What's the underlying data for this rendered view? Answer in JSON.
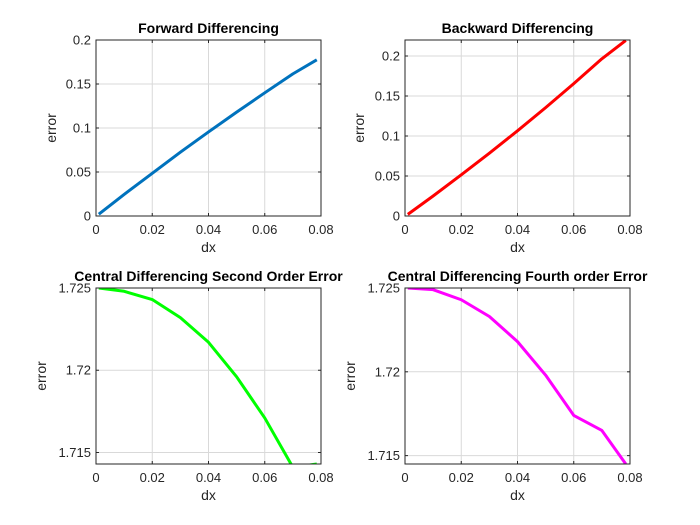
{
  "chart_data": [
    {
      "type": "line",
      "title": "Forward Differencing",
      "xlabel": "dx",
      "ylabel": "error",
      "xlim": [
        0,
        0.08
      ],
      "ylim": [
        0,
        0.2
      ],
      "xticks": [
        "0",
        "0.02",
        "0.04",
        "0.06",
        "0.08"
      ],
      "yticks": [
        "0",
        "0.05",
        "0.1",
        "0.15",
        "0.2"
      ],
      "xtick_values": [
        0,
        0.02,
        0.04,
        0.06,
        0.08
      ],
      "ytick_values": [
        0,
        0.05,
        0.1,
        0.15,
        0.2
      ],
      "grid": true,
      "series": [
        {
          "color": "#0072BD",
          "x": [
            0.001,
            0.01,
            0.02,
            0.03,
            0.04,
            0.05,
            0.06,
            0.07,
            0.0785
          ],
          "y": [
            0.002,
            0.0245,
            0.0485,
            0.0725,
            0.0955,
            0.118,
            0.14,
            0.1615,
            0.1775
          ]
        }
      ]
    },
    {
      "type": "line",
      "title": "Backward Differencing",
      "xlabel": "dx",
      "ylabel": "error",
      "xlim": [
        0,
        0.08
      ],
      "ylim": [
        0,
        0.22
      ],
      "xticks": [
        "0",
        "0.02",
        "0.04",
        "0.06",
        "0.08"
      ],
      "yticks": [
        "0",
        "0.05",
        "0.1",
        "0.15",
        "0.2"
      ],
      "xtick_values": [
        0,
        0.02,
        0.04,
        0.06,
        0.08
      ],
      "ytick_values": [
        0,
        0.05,
        0.1,
        0.15,
        0.2
      ],
      "grid": true,
      "series": [
        {
          "color": "#FF0000",
          "x": [
            0.001,
            0.01,
            0.02,
            0.03,
            0.04,
            0.05,
            0.06,
            0.07,
            0.0785
          ],
          "y": [
            0.002,
            0.025,
            0.0515,
            0.0785,
            0.1065,
            0.1355,
            0.1655,
            0.1965,
            0.2195
          ]
        }
      ]
    },
    {
      "type": "line",
      "title": "Central Differencing Second Order Error",
      "xlabel": "dx",
      "ylabel": "error",
      "xlim": [
        0,
        0.08
      ],
      "ylim": [
        1.7143,
        1.725
      ],
      "xticks": [
        "0",
        "0.02",
        "0.04",
        "0.06",
        "0.08"
      ],
      "yticks": [
        "1.715",
        "1.72",
        "1.725"
      ],
      "xtick_values": [
        0,
        0.02,
        0.04,
        0.06,
        0.08
      ],
      "ytick_values": [
        1.715,
        1.72,
        1.725
      ],
      "grid": true,
      "series": [
        {
          "color": "#00FF00",
          "x": [
            0.001,
            0.01,
            0.02,
            0.03,
            0.04,
            0.05,
            0.06,
            0.07,
            0.0785
          ],
          "y": [
            1.725,
            1.7248,
            1.7243,
            1.7232,
            1.7217,
            1.7196,
            1.7171,
            1.7141,
            1.7143
          ]
        }
      ]
    },
    {
      "type": "line",
      "title": "Central Differencing Fourth order Error",
      "xlabel": "dx",
      "ylabel": "error",
      "xlim": [
        0,
        0.08
      ],
      "ylim": [
        1.7145,
        1.725
      ],
      "xticks": [
        "0",
        "0.02",
        "0.04",
        "0.06",
        "0.08"
      ],
      "yticks": [
        "1.715",
        "1.72",
        "1.725"
      ],
      "xtick_values": [
        0,
        0.02,
        0.04,
        0.06,
        0.08
      ],
      "ytick_values": [
        1.715,
        1.72,
        1.725
      ],
      "grid": true,
      "series": [
        {
          "color": "#FF00FF",
          "x": [
            0.001,
            0.01,
            0.02,
            0.03,
            0.04,
            0.05,
            0.06,
            0.07,
            0.0785
          ],
          "y": [
            1.725,
            1.7249,
            1.7243,
            1.7233,
            1.7218,
            1.7198,
            1.7174,
            1.7165,
            1.7145
          ]
        }
      ]
    }
  ]
}
